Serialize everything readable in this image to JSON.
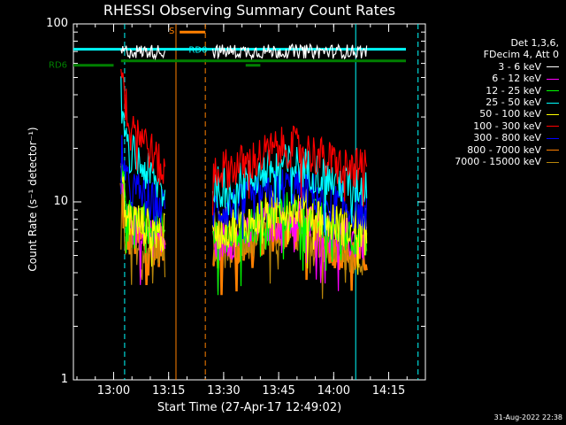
{
  "chart_data": {
    "type": "line",
    "title": "RHESSI Observing Summary Count Rates",
    "xlabel": "Start Time (27-Apr-17 12:49:02)",
    "ylabel": "Count Rate (s⁻¹ detector⁻¹)",
    "yscale": "log",
    "ylim": [
      1,
      100
    ],
    "xlim": [
      "12:49:02",
      "14:25"
    ],
    "yticks": [
      "1",
      "10",
      "100"
    ],
    "xticks": [
      "13:00",
      "13:15",
      "13:30",
      "13:45",
      "14:00",
      "14:15"
    ],
    "legend_header": [
      "Det 1,3,6,",
      "FDecim 4, Att 0"
    ],
    "legend_position": "top-right, outside plot",
    "flags": {
      "RD0": {
        "label": "RD0",
        "color": "#00ffff",
        "y": 72
      },
      "RD6": {
        "label": "RD6",
        "color": "#008000",
        "y": 62
      },
      "S": {
        "label": "S",
        "color": "#ff8000"
      }
    },
    "series": [
      {
        "name": "3 - 6 keV",
        "color": "#ffffff",
        "segments": [
          {
            "x": [
              "13:02",
              "13:14"
            ],
            "y": [
              70,
              70
            ]
          },
          {
            "x": [
              "13:27",
              "14:09"
            ],
            "y": [
              70,
              70
            ]
          }
        ]
      },
      {
        "name": "6 - 12 keV",
        "color": "#ff00ff",
        "segments": [
          {
            "x": [
              "13:02",
              "13:14"
            ],
            "y": [
              8,
              6
            ]
          },
          {
            "x": [
              "13:27",
              "14:09"
            ],
            "y": [
              6,
              6
            ]
          }
        ]
      },
      {
        "name": "12 - 25 keV",
        "color": "#00ff00",
        "segments": [
          {
            "x": [
              "13:02",
              "13:14"
            ],
            "y": [
              9,
              6.5
            ]
          },
          {
            "x": [
              "13:27",
              "14:09"
            ],
            "y": [
              6.5,
              6.5
            ]
          }
        ]
      },
      {
        "name": "25 - 50 keV",
        "color": "#00ffff",
        "segments": [
          {
            "x": [
              "13:02",
              "13:14"
            ],
            "y": [
              22,
              11
            ]
          },
          {
            "x": [
              "13:27",
              "14:09"
            ],
            "y": [
              12,
              12
            ]
          }
        ]
      },
      {
        "name": "50 - 100 keV",
        "color": "#ffff00",
        "segments": [
          {
            "x": [
              "13:02",
              "13:14"
            ],
            "y": [
              8.5,
              6.5
            ]
          },
          {
            "x": [
              "13:27",
              "14:09"
            ],
            "y": [
              7,
              7
            ]
          }
        ]
      },
      {
        "name": "100 - 300 keV",
        "color": "#ff0000",
        "segments": [
          {
            "x": [
              "13:02",
              "13:14"
            ],
            "y": [
              38,
              14
            ]
          },
          {
            "x": [
              "13:27",
              "14:09"
            ],
            "y": [
              15,
              15
            ]
          }
        ]
      },
      {
        "name": "300 - 800 keV",
        "color": "#0000ff",
        "segments": [
          {
            "x": [
              "13:02",
              "13:14"
            ],
            "y": [
              13,
              9
            ]
          },
          {
            "x": [
              "13:27",
              "14:09"
            ],
            "y": [
              9,
              9
            ]
          }
        ]
      },
      {
        "name": "800 - 7000 keV",
        "color": "#ff8000",
        "segments": [
          {
            "x": [
              "13:02",
              "13:14"
            ],
            "y": [
              6.5,
              5.5
            ]
          },
          {
            "x": [
              "13:27",
              "14:09"
            ],
            "y": [
              5.5,
              5
            ]
          }
        ]
      },
      {
        "name": "7000 - 15000 keV",
        "color": "#b8860b",
        "segments": [
          {
            "x": [
              "13:02",
              "13:14"
            ],
            "y": [
              6,
              5.5
            ]
          },
          {
            "x": [
              "13:27",
              "14:09"
            ],
            "y": [
              5.5,
              5
            ]
          }
        ]
      }
    ],
    "vertical_markers": [
      {
        "x": "13:03",
        "color": "#00ffff",
        "style": "dashed"
      },
      {
        "x": "13:17",
        "color": "#ff8000",
        "style": "solid"
      },
      {
        "x": "13:25",
        "color": "#ff8000",
        "style": "dashed"
      },
      {
        "x": "14:06",
        "color": "#00ffff",
        "style": "solid"
      },
      {
        "x": "14:23",
        "color": "#00ffff",
        "style": "dashed"
      }
    ],
    "grid": false
  },
  "footer": {
    "timestamp": "31-Aug-2022 22:38"
  }
}
